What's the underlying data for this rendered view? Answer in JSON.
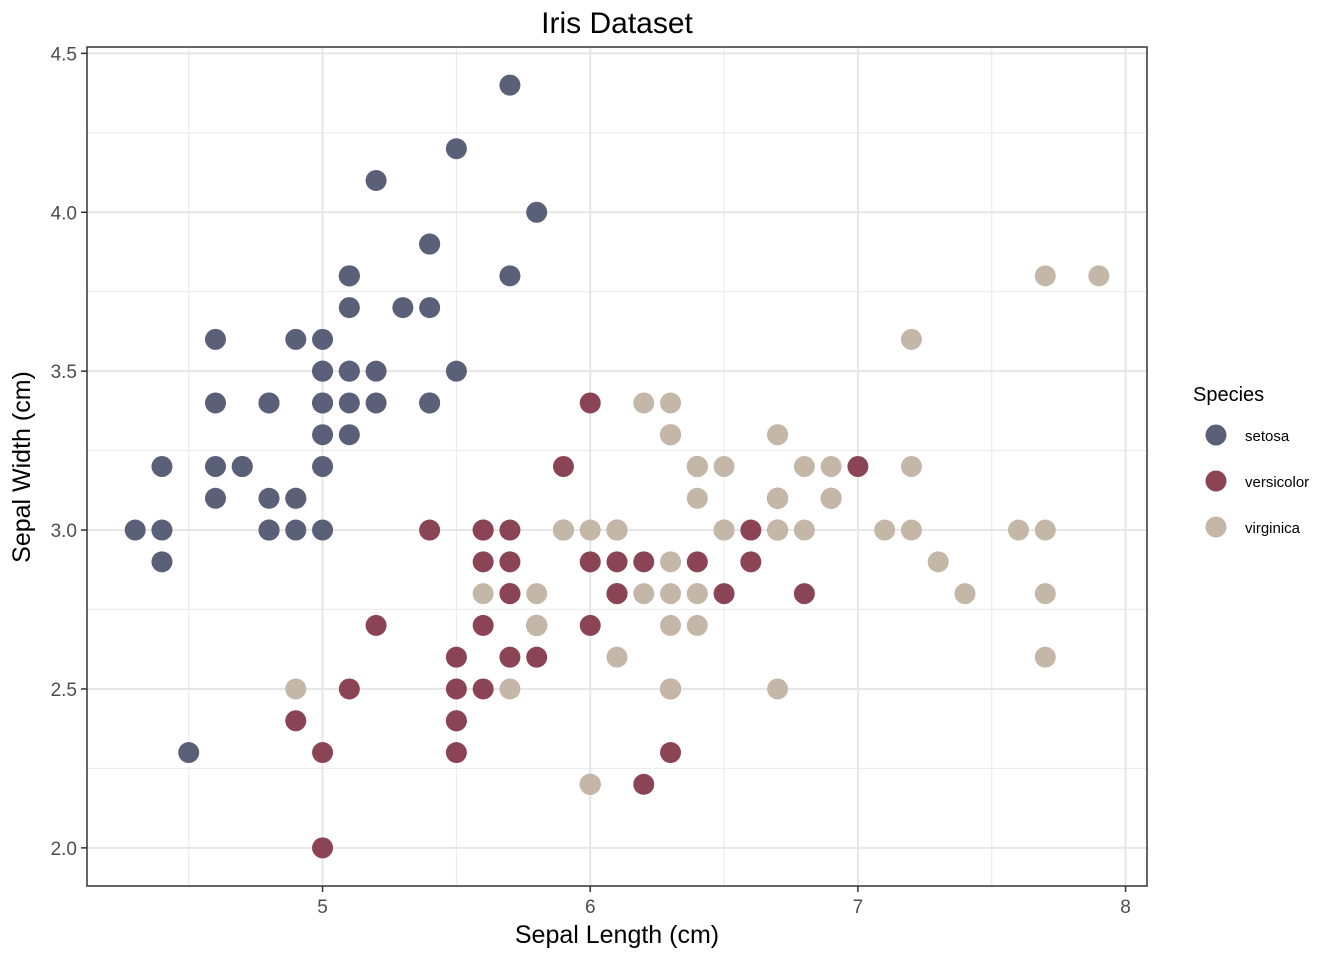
{
  "chart_data": {
    "type": "scatter",
    "title": "Iris Dataset",
    "xlabel": "Sepal Length (cm)",
    "ylabel": "Sepal Width (cm)",
    "xlim": [
      4.12,
      8.08
    ],
    "ylim": [
      1.88,
      4.52
    ],
    "x_ticks": [
      5,
      6,
      7,
      8
    ],
    "x_tick_labels": [
      "5",
      "6",
      "7",
      "8"
    ],
    "y_ticks": [
      2.0,
      2.5,
      3.0,
      3.5,
      4.0,
      4.5
    ],
    "y_tick_labels": [
      "2.0",
      "2.5",
      "3.0",
      "3.5",
      "4.0",
      "4.5"
    ],
    "grid": true,
    "legend": {
      "title": "Species",
      "position": "right"
    },
    "series": [
      {
        "name": "setosa",
        "color": "#5a6078",
        "points": [
          [
            5.1,
            3.5
          ],
          [
            4.9,
            3.0
          ],
          [
            4.7,
            3.2
          ],
          [
            4.6,
            3.1
          ],
          [
            5.0,
            3.6
          ],
          [
            5.4,
            3.9
          ],
          [
            4.6,
            3.4
          ],
          [
            5.0,
            3.4
          ],
          [
            4.4,
            2.9
          ],
          [
            4.9,
            3.1
          ],
          [
            5.4,
            3.7
          ],
          [
            4.8,
            3.4
          ],
          [
            4.8,
            3.0
          ],
          [
            4.3,
            3.0
          ],
          [
            5.8,
            4.0
          ],
          [
            5.7,
            4.4
          ],
          [
            5.4,
            3.9
          ],
          [
            5.1,
            3.5
          ],
          [
            5.7,
            3.8
          ],
          [
            5.1,
            3.8
          ],
          [
            5.4,
            3.4
          ],
          [
            5.1,
            3.7
          ],
          [
            4.6,
            3.6
          ],
          [
            5.1,
            3.3
          ],
          [
            4.8,
            3.4
          ],
          [
            5.0,
            3.0
          ],
          [
            5.0,
            3.4
          ],
          [
            5.2,
            3.5
          ],
          [
            5.2,
            3.4
          ],
          [
            4.7,
            3.2
          ],
          [
            4.8,
            3.1
          ],
          [
            5.4,
            3.4
          ],
          [
            5.2,
            4.1
          ],
          [
            5.5,
            4.2
          ],
          [
            4.9,
            3.1
          ],
          [
            5.0,
            3.2
          ],
          [
            5.5,
            3.5
          ],
          [
            4.9,
            3.6
          ],
          [
            4.4,
            3.0
          ],
          [
            5.1,
            3.4
          ],
          [
            5.0,
            3.5
          ],
          [
            4.5,
            2.3
          ],
          [
            4.4,
            3.2
          ],
          [
            5.0,
            3.5
          ],
          [
            5.1,
            3.8
          ],
          [
            4.8,
            3.0
          ],
          [
            5.1,
            3.8
          ],
          [
            4.6,
            3.2
          ],
          [
            5.3,
            3.7
          ],
          [
            5.0,
            3.3
          ]
        ]
      },
      {
        "name": "versicolor",
        "color": "#8b4455",
        "points": [
          [
            7.0,
            3.2
          ],
          [
            6.4,
            3.2
          ],
          [
            6.9,
            3.1
          ],
          [
            5.5,
            2.3
          ],
          [
            6.5,
            2.8
          ],
          [
            5.7,
            2.8
          ],
          [
            6.3,
            3.3
          ],
          [
            4.9,
            2.4
          ],
          [
            6.6,
            2.9
          ],
          [
            5.2,
            2.7
          ],
          [
            5.0,
            2.0
          ],
          [
            5.9,
            3.0
          ],
          [
            6.0,
            2.2
          ],
          [
            6.1,
            2.9
          ],
          [
            5.6,
            2.9
          ],
          [
            6.7,
            3.1
          ],
          [
            5.6,
            3.0
          ],
          [
            5.8,
            2.7
          ],
          [
            6.2,
            2.2
          ],
          [
            5.6,
            2.5
          ],
          [
            5.9,
            3.2
          ],
          [
            6.1,
            2.8
          ],
          [
            6.3,
            2.5
          ],
          [
            6.1,
            2.8
          ],
          [
            6.4,
            2.9
          ],
          [
            6.6,
            3.0
          ],
          [
            6.8,
            2.8
          ],
          [
            6.7,
            3.0
          ],
          [
            6.0,
            2.9
          ],
          [
            5.7,
            2.6
          ],
          [
            5.5,
            2.4
          ],
          [
            5.5,
            2.4
          ],
          [
            5.8,
            2.7
          ],
          [
            6.0,
            2.7
          ],
          [
            5.4,
            3.0
          ],
          [
            6.0,
            3.4
          ],
          [
            6.7,
            3.1
          ],
          [
            6.3,
            2.3
          ],
          [
            5.6,
            3.0
          ],
          [
            5.5,
            2.5
          ],
          [
            5.5,
            2.6
          ],
          [
            6.1,
            3.0
          ],
          [
            5.8,
            2.6
          ],
          [
            5.0,
            2.3
          ],
          [
            5.6,
            2.7
          ],
          [
            5.7,
            3.0
          ],
          [
            5.7,
            2.9
          ],
          [
            6.2,
            2.9
          ],
          [
            5.1,
            2.5
          ],
          [
            5.7,
            2.8
          ]
        ]
      },
      {
        "name": "virginica",
        "color": "#c5b7a8",
        "points": [
          [
            6.3,
            3.3
          ],
          [
            5.8,
            2.7
          ],
          [
            7.1,
            3.0
          ],
          [
            6.3,
            2.9
          ],
          [
            6.5,
            3.0
          ],
          [
            7.6,
            3.0
          ],
          [
            4.9,
            2.5
          ],
          [
            7.3,
            2.9
          ],
          [
            6.7,
            2.5
          ],
          [
            7.2,
            3.6
          ],
          [
            6.5,
            3.2
          ],
          [
            6.4,
            2.7
          ],
          [
            6.8,
            3.0
          ],
          [
            5.7,
            2.5
          ],
          [
            5.8,
            2.8
          ],
          [
            6.4,
            3.2
          ],
          [
            6.5,
            3.0
          ],
          [
            7.7,
            3.8
          ],
          [
            7.7,
            2.6
          ],
          [
            6.0,
            2.2
          ],
          [
            6.9,
            3.2
          ],
          [
            5.6,
            2.8
          ],
          [
            7.7,
            2.8
          ],
          [
            6.3,
            2.7
          ],
          [
            6.7,
            3.3
          ],
          [
            7.2,
            3.2
          ],
          [
            6.2,
            2.8
          ],
          [
            6.1,
            3.0
          ],
          [
            6.4,
            2.8
          ],
          [
            7.2,
            3.0
          ],
          [
            7.4,
            2.8
          ],
          [
            7.9,
            3.8
          ],
          [
            6.4,
            2.8
          ],
          [
            6.3,
            2.8
          ],
          [
            6.1,
            2.6
          ],
          [
            7.7,
            3.0
          ],
          [
            6.3,
            3.4
          ],
          [
            6.4,
            3.1
          ],
          [
            6.0,
            3.0
          ],
          [
            6.9,
            3.1
          ],
          [
            6.7,
            3.1
          ],
          [
            6.9,
            3.1
          ],
          [
            5.8,
            2.7
          ],
          [
            6.8,
            3.2
          ],
          [
            6.7,
            3.3
          ],
          [
            6.7,
            3.0
          ],
          [
            6.3,
            2.5
          ],
          [
            6.5,
            3.0
          ],
          [
            6.2,
            3.4
          ],
          [
            5.9,
            3.0
          ]
        ]
      }
    ]
  }
}
